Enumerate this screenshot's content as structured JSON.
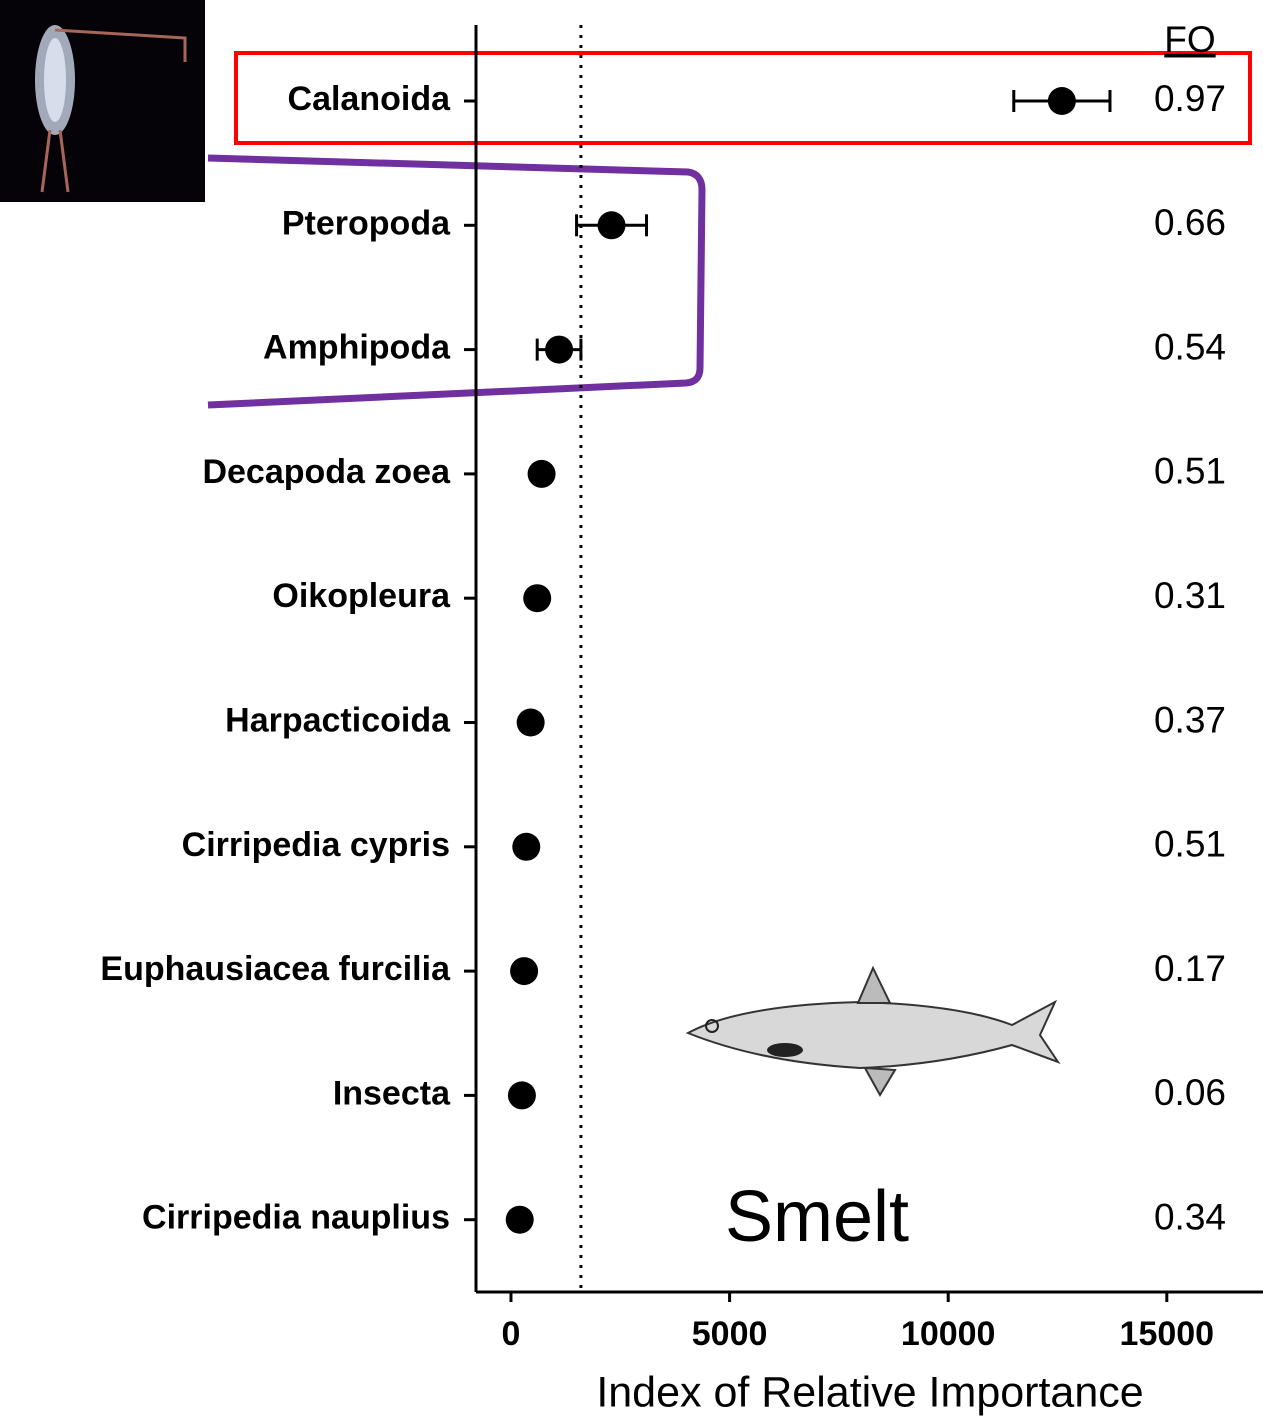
{
  "chart_data": {
    "type": "dot_errorbar",
    "categories": [
      "Calanoida",
      "Pteropoda",
      "Amphipoda",
      "Decapoda zoea",
      "Oikopleura",
      "Harpacticoida",
      "Cirripedia cypris",
      "Euphausiacea furcilia",
      "Insecta",
      "Cirripedia nauplius"
    ],
    "values": [
      12600,
      2300,
      1100,
      700,
      600,
      450,
      350,
      300,
      250,
      200
    ],
    "errors": [
      1100,
      800,
      500,
      null,
      null,
      null,
      null,
      null,
      null,
      null
    ],
    "color": "#000000",
    "xlabel": "Index of Relative Importance",
    "xlim": [
      -800,
      17200
    ],
    "xticks": [
      0,
      5000,
      10000,
      15000
    ],
    "reference_line": 1600,
    "fo_header": "FO",
    "fo_values": [
      0.97,
      0.66,
      0.54,
      0.51,
      0.31,
      0.37,
      0.51,
      0.17,
      0.06,
      0.34
    ],
    "annotation": "Smelt"
  }
}
